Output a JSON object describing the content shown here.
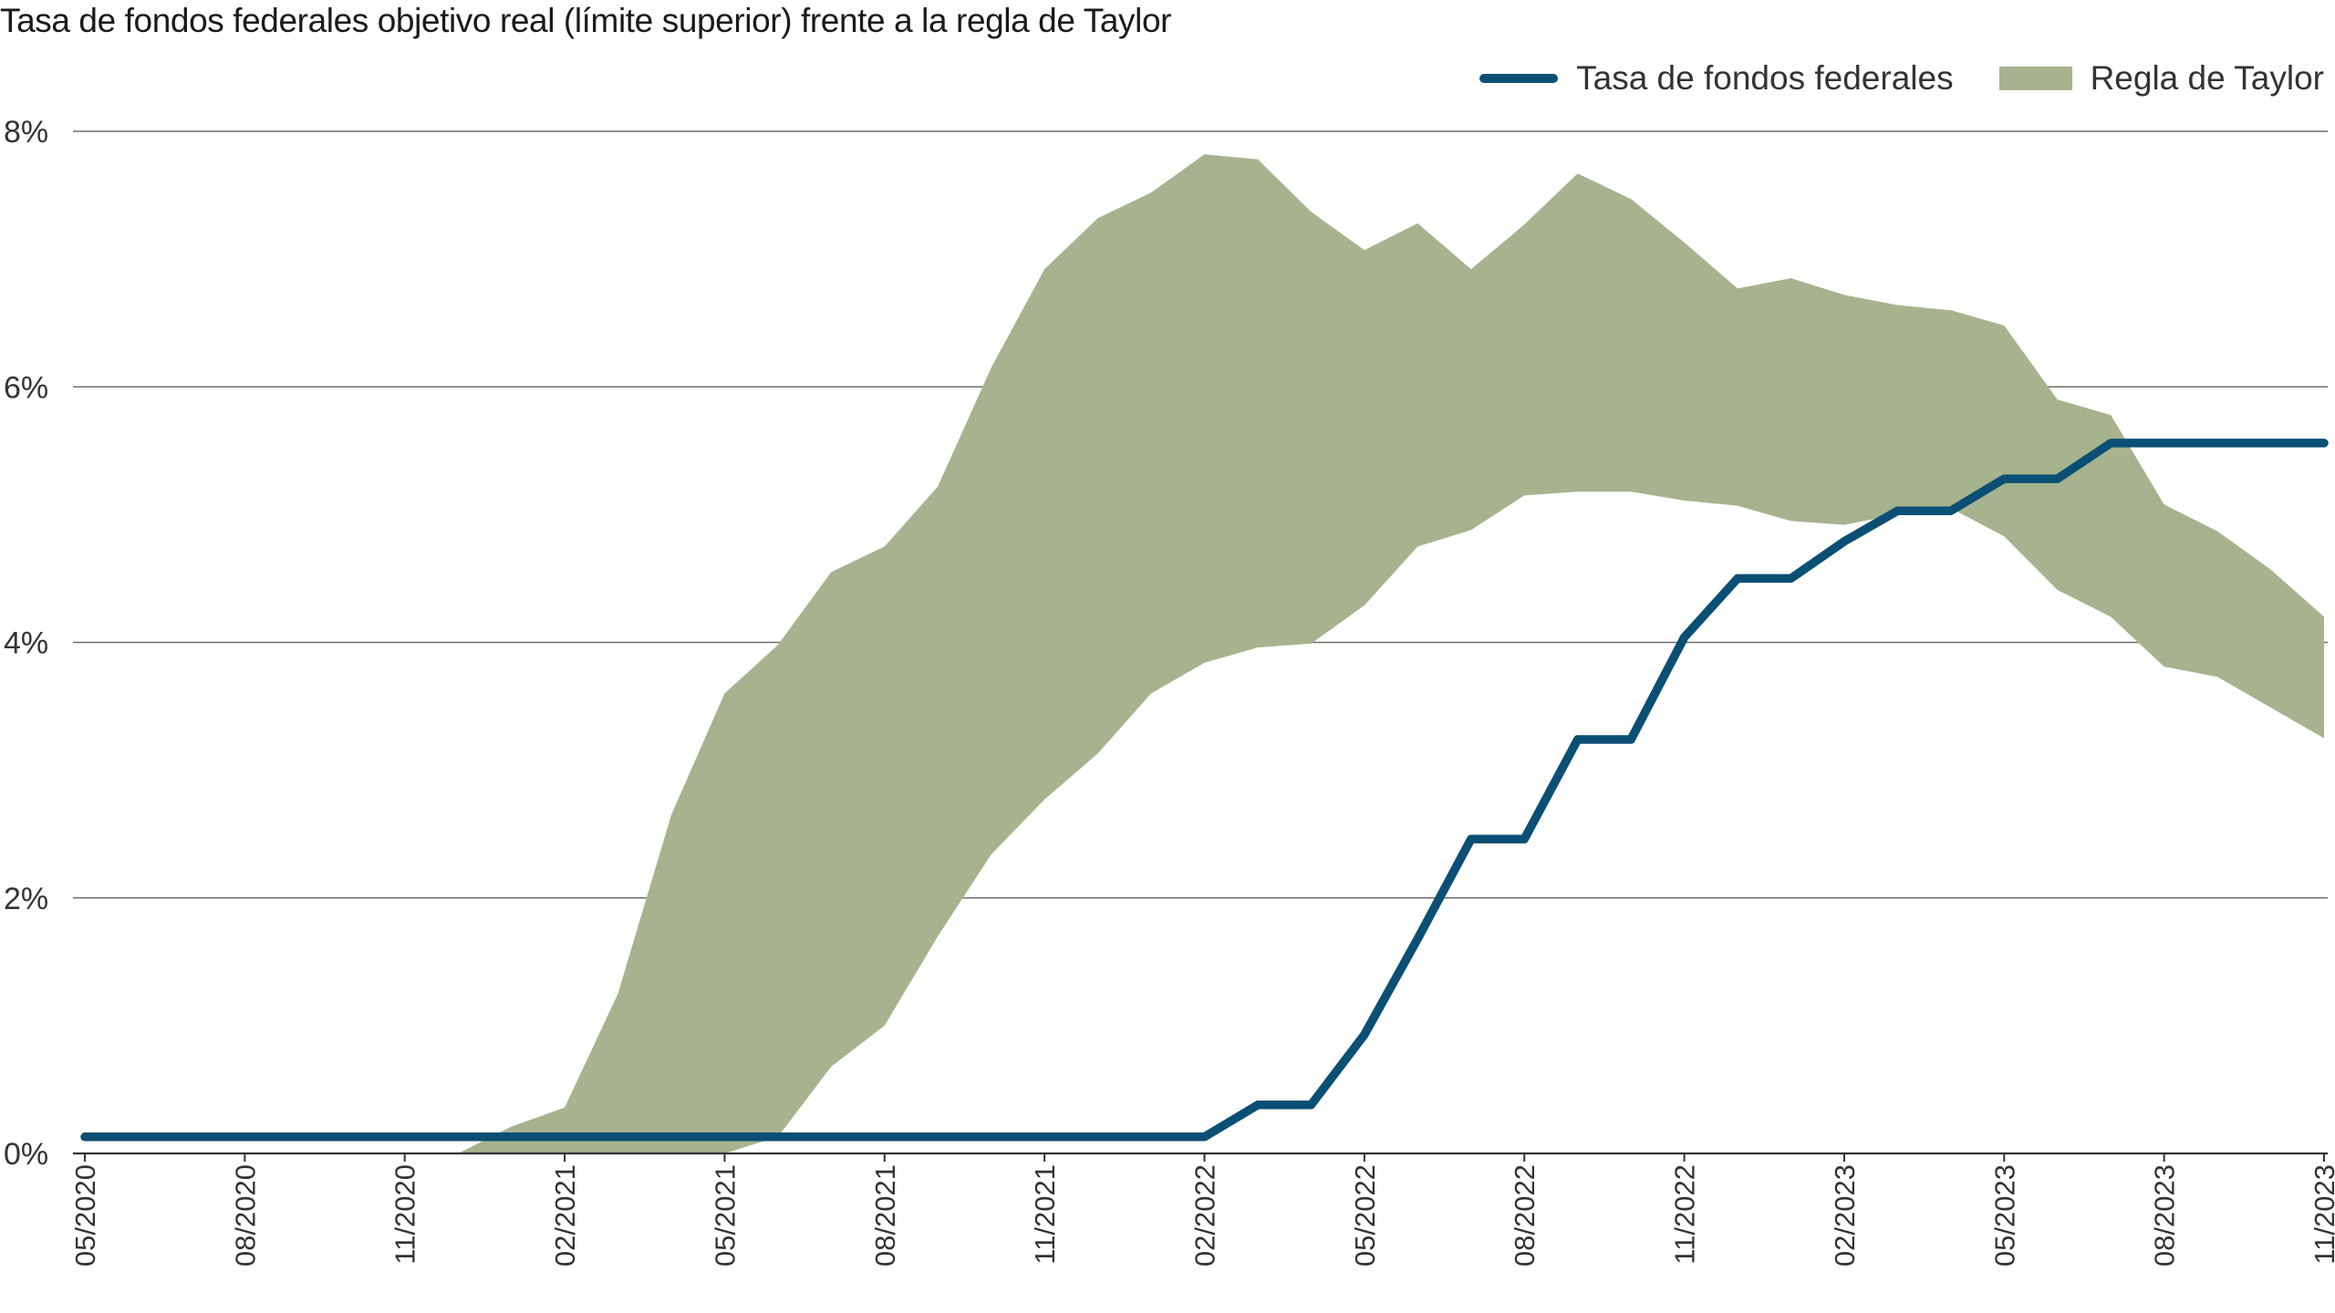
{
  "chart_data": {
    "type": "line",
    "title": "Tasa de fondos federales objetivo real (límite superior) frente a la regla de Taylor",
    "legend_position": "top-right",
    "grid": true,
    "x_tick_labels": [
      "05/2020",
      "08/2020",
      "11/2020",
      "02/2021",
      "05/2021",
      "08/2021",
      "11/2021",
      "02/2022",
      "05/2022",
      "08/2022",
      "11/2022",
      "02/2023",
      "05/2023",
      "08/2023",
      "11/2023"
    ],
    "y_tick_labels": [
      "0%",
      "2%",
      "4%",
      "6%",
      "8%"
    ],
    "y_ticks": [
      0,
      2,
      4,
      6,
      8
    ],
    "ylim": [
      0,
      8
    ],
    "x": [
      "05/2020",
      "06/2020",
      "07/2020",
      "08/2020",
      "09/2020",
      "10/2020",
      "11/2020",
      "12/2020",
      "01/2021",
      "02/2021",
      "03/2021",
      "04/2021",
      "05/2021",
      "06/2021",
      "07/2021",
      "08/2021",
      "09/2021",
      "10/2021",
      "11/2021",
      "12/2021",
      "01/2022",
      "02/2022",
      "03/2022",
      "04/2022",
      "05/2022",
      "06/2022",
      "07/2022",
      "08/2022",
      "09/2022",
      "10/2022",
      "11/2022",
      "12/2022",
      "01/2023",
      "02/2023",
      "03/2023",
      "04/2023",
      "05/2023",
      "06/2023",
      "07/2023",
      "08/2023",
      "09/2023",
      "10/2023",
      "11/2023"
    ],
    "series": [
      {
        "name": "Tasa de fondos federales",
        "color": "#0b4f74",
        "values": [
          0.13,
          0.13,
          0.13,
          0.13,
          0.13,
          0.13,
          0.13,
          0.13,
          0.13,
          0.13,
          0.13,
          0.13,
          0.13,
          0.13,
          0.13,
          0.13,
          0.13,
          0.13,
          0.13,
          0.13,
          0.13,
          0.13,
          0.38,
          0.38,
          0.93,
          1.68,
          2.46,
          2.46,
          3.24,
          3.24,
          4.04,
          4.5,
          4.5,
          4.79,
          5.03,
          5.03,
          5.28,
          5.28,
          5.56,
          5.56,
          5.56,
          5.56,
          5.56
        ]
      },
      {
        "name": "Regla de Taylor",
        "type": "area",
        "color": "#a6b38e",
        "upper": [
          null,
          null,
          null,
          null,
          null,
          null,
          null,
          0.0,
          0.21,
          0.36,
          1.25,
          2.65,
          3.6,
          3.98,
          4.55,
          4.75,
          5.22,
          6.15,
          6.92,
          7.32,
          7.52,
          7.82,
          7.78,
          7.37,
          7.07,
          7.28,
          6.92,
          7.27,
          7.67,
          7.47,
          7.13,
          6.77,
          6.85,
          6.72,
          6.64,
          6.6,
          6.48,
          5.9,
          5.78,
          5.08,
          4.87,
          4.57,
          4.2
        ],
        "lower": [
          null,
          null,
          null,
          null,
          null,
          null,
          null,
          0.0,
          0.0,
          0.0,
          0.0,
          0.0,
          0.0,
          0.13,
          0.68,
          1.0,
          1.7,
          2.34,
          2.77,
          3.13,
          3.6,
          3.84,
          3.96,
          3.99,
          4.29,
          4.75,
          4.88,
          5.15,
          5.18,
          5.18,
          5.11,
          5.07,
          4.95,
          4.92,
          5.0,
          5.05,
          4.83,
          4.41,
          4.2,
          3.81,
          3.73,
          3.49,
          3.25
        ]
      }
    ]
  }
}
